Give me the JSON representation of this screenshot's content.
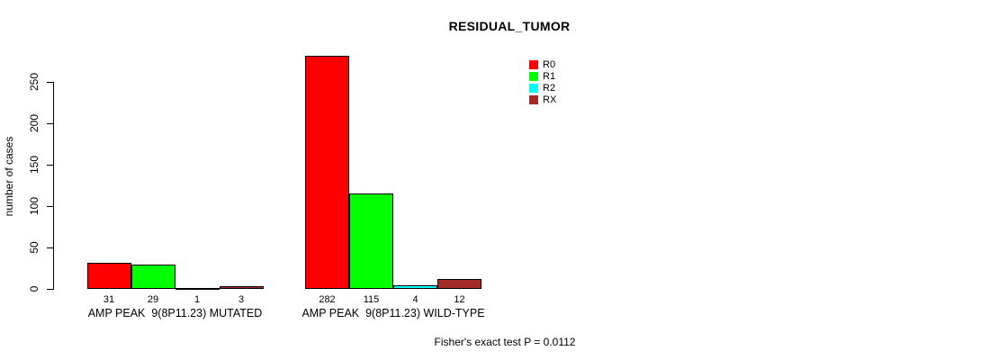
{
  "chart_data": {
    "type": "bar",
    "title": "RESIDUAL_TUMOR",
    "ylabel": "number of cases",
    "xlabel": "",
    "ylim": [
      0,
      250
    ],
    "yticks": [
      0,
      50,
      100,
      150,
      200,
      250
    ],
    "grid": false,
    "legend_position": "top-right",
    "categories": [
      "AMP PEAK  9(8P11.23) MUTATED",
      "AMP PEAK  9(8P11.23) WILD-TYPE"
    ],
    "series": [
      {
        "name": "R0",
        "color": "#FF0000",
        "values": [
          31,
          282
        ]
      },
      {
        "name": "R1",
        "color": "#00FF00",
        "values": [
          29,
          115
        ]
      },
      {
        "name": "R2",
        "color": "#00FFFF",
        "values": [
          1,
          4
        ]
      },
      {
        "name": "RX",
        "color": "#A52A2A",
        "values": [
          3,
          12
        ]
      }
    ],
    "bar_value_labels": [
      [
        31,
        29,
        1,
        3
      ],
      [
        282,
        115,
        4,
        12
      ]
    ],
    "annotation": "Fisher's exact test P = 0.0112",
    "bar_outline_color": "#000000",
    "text_color": "#000000"
  }
}
